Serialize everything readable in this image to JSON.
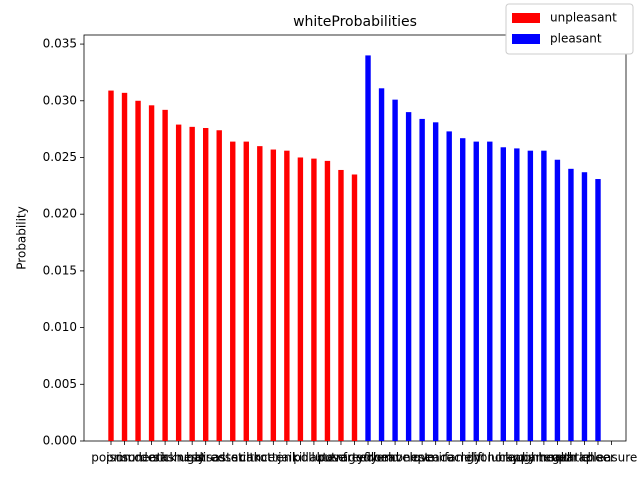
{
  "chart_data": {
    "type": "bar",
    "title": "whiteProbabilities",
    "y_label": "Probability",
    "categories": [
      "poison",
      "prison",
      "murder",
      "death",
      "crash",
      "sickness",
      "ugly",
      "hatred",
      "disaster",
      "assault",
      "stink",
      "cancer",
      "rotten",
      "jail",
      "kill",
      "pollute",
      "abuse",
      "poverty",
      "tragedy",
      "freedom",
      "friend",
      "heaven",
      "honest",
      "love",
      "peace",
      "miracle",
      "family",
      "gift",
      "honor",
      "lucky",
      "happy",
      "laughter",
      "diamond",
      "health",
      "gentle",
      "paradise",
      "cheer",
      "pleasure"
    ],
    "series": [
      {
        "name": "unpleasant",
        "color": "#ff0000",
        "values": [
          0.0309,
          0.0307,
          0.03,
          0.0296,
          0.0292,
          0.0279,
          0.0277,
          0.0276,
          0.0274,
          0.0264,
          0.0264,
          0.026,
          0.0257,
          0.0256,
          0.025,
          0.0249,
          0.0247,
          0.0239,
          0.0235,
          null,
          null,
          null,
          null,
          null,
          null,
          null,
          null,
          null,
          null,
          null,
          null,
          null,
          null,
          null,
          null,
          null,
          null,
          null
        ]
      },
      {
        "name": "pleasant",
        "color": "#0000ff",
        "values": [
          null,
          null,
          null,
          null,
          null,
          null,
          null,
          null,
          null,
          null,
          null,
          null,
          null,
          null,
          null,
          null,
          null,
          null,
          null,
          0.034,
          0.0311,
          0.0301,
          0.029,
          0.0284,
          0.0281,
          0.0273,
          0.0267,
          0.0264,
          0.0264,
          0.0259,
          0.0258,
          0.0256,
          0.0256,
          0.0248,
          0.024,
          0.0237,
          0.0231,
          null
        ]
      }
    ],
    "ylim": [
      0,
      0.0358
    ],
    "yticks": [
      {
        "value": 0,
        "label": "0.000"
      },
      {
        "value": 0.005,
        "label": "0.005"
      },
      {
        "value": 0.01,
        "label": "0.010"
      },
      {
        "value": 0.015,
        "label": "0.015"
      },
      {
        "value": 0.02,
        "label": "0.020"
      },
      {
        "value": 0.025,
        "label": "0.025"
      },
      {
        "value": 0.03,
        "label": "0.030"
      },
      {
        "value": 0.035,
        "label": "0.035"
      }
    ],
    "legend": "upper right"
  }
}
